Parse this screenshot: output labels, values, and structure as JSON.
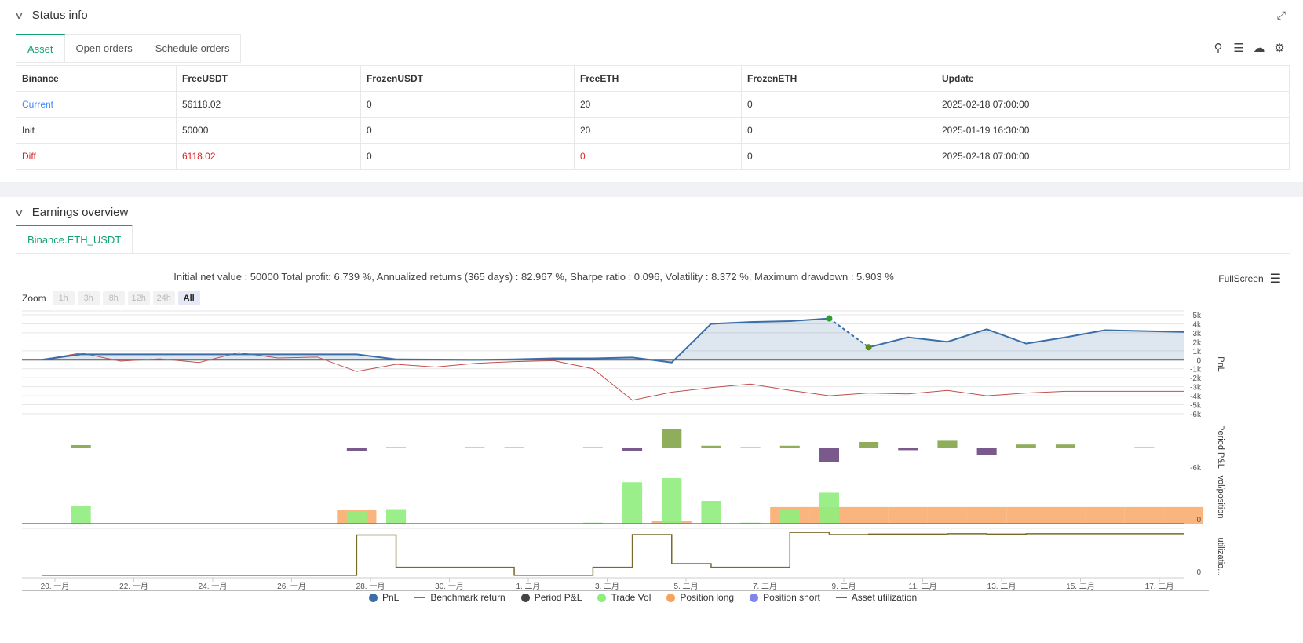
{
  "status": {
    "title": "Status info",
    "tabs": [
      "Asset",
      "Open orders",
      "Schedule orders"
    ],
    "table": {
      "headers": [
        "Binance",
        "FreeUSDT",
        "FrozenUSDT",
        "FreeETH",
        "FrozenETH",
        "Update"
      ],
      "rows": [
        [
          "Current",
          "56118.02",
          "0",
          "20",
          "0",
          "2025-02-18 07:00:00"
        ],
        [
          "Init",
          "50000",
          "0",
          "20",
          "0",
          "2025-01-19 16:30:00"
        ],
        [
          "Diff",
          "6118.02",
          "0",
          "0",
          "0",
          "2025-02-18 07:00:00"
        ]
      ]
    }
  },
  "earnings": {
    "title": "Earnings overview",
    "tab": "Binance.ETH_USDT",
    "summary": "Initial net value : 50000 Total profit: 6.739 %, Annualized returns (365 days) : 82.967 %, Sharpe ratio : 0.096, Volatility : 8.372 %, Maximum drawdown : 5.903 %",
    "fullscreen": "FullScreen",
    "zoom_label": "Zoom",
    "zoom_buttons": [
      "1h",
      "3h",
      "8h",
      "12h",
      "24h",
      "All"
    ],
    "legend": [
      "PnL",
      "Benchmark return",
      "Period P&L",
      "Trade Vol",
      "Position long",
      "Position short",
      "Asset utilization"
    ]
  },
  "colors": {
    "accent": "#13a36e",
    "pnl": "#3b6ea8",
    "benchmark": "#c0504d",
    "period_pos": "#8fad5a",
    "period_neg": "#7a5a8c",
    "vol": "#90ed7d",
    "long": "#f7a35c",
    "short": "#8085e9",
    "util": "#7a6a2a"
  },
  "chart_data": {
    "type": "line",
    "x_ticks": [
      "20. 一月",
      "22. 一月",
      "24. 一月",
      "26. 一月",
      "28. 一月",
      "30. 一月",
      "1. 二月",
      "3. 二月",
      "5. 二月",
      "7. 二月",
      "9. 二月",
      "11. 二月",
      "13. 二月",
      "15. 二月",
      "17. 二月"
    ],
    "pnl": {
      "ylabel": "PnL",
      "y_ticks": [
        "5k",
        "4k",
        "3k",
        "2k",
        "1k",
        "0",
        "-1k",
        "-2k",
        "-3k",
        "-4k",
        "-5k",
        "-6k"
      ],
      "ylim": [
        -6000,
        5000
      ],
      "x": [
        0,
        1,
        2,
        3,
        4,
        5,
        6,
        7,
        8,
        9,
        10,
        11,
        12,
        13,
        14,
        15,
        16,
        17,
        18,
        19,
        20,
        21,
        22,
        23,
        24,
        25,
        26,
        27,
        28,
        29
      ],
      "series": [
        {
          "name": "PnL",
          "values": [
            0,
            600,
            600,
            600,
            600,
            600,
            600,
            600,
            600,
            50,
            20,
            -20,
            50,
            150,
            150,
            250,
            -300,
            4000,
            4200,
            4300,
            4600,
            1400,
            2500,
            2000,
            3400,
            1800,
            2500,
            3300,
            3200,
            3100
          ]
        },
        {
          "name": "Benchmark return",
          "values": [
            0,
            750,
            -150,
            100,
            -300,
            800,
            200,
            300,
            -1300,
            -500,
            -800,
            -400,
            -200,
            -100,
            -1000,
            -4500,
            -3600,
            -3100,
            -2700,
            -3400,
            -4000,
            -3700,
            -3800,
            -3400,
            -4000,
            -3700,
            -3500,
            -3500,
            -3500,
            -3500
          ]
        }
      ]
    },
    "period_pnl": {
      "ylabel": "Period P&L",
      "y_ticks": [
        "-6k"
      ],
      "bars": [
        0,
        250,
        0,
        0,
        0,
        0,
        0,
        0,
        -200,
        80,
        0,
        80,
        80,
        0,
        80,
        -200,
        1500,
        200,
        80,
        200,
        -1100,
        500,
        -150,
        600,
        -500,
        300,
        300,
        0,
        80,
        0
      ]
    },
    "vol_position": {
      "ylabel": "vol/position",
      "y_ticks": [
        "0"
      ],
      "trade_vol": [
        0,
        1700,
        0,
        0,
        0,
        0,
        0,
        0,
        1200,
        1400,
        0,
        0,
        0,
        0,
        100,
        4000,
        4400,
        2200,
        100,
        1300,
        3000,
        0,
        0,
        0,
        0,
        0,
        0,
        0,
        0,
        0
      ],
      "position_long": [
        0,
        0,
        0,
        0,
        0,
        0,
        0,
        0,
        1300,
        0,
        0,
        0,
        0,
        0,
        0,
        0,
        300,
        0,
        0,
        1600,
        1600,
        1600,
        1600,
        1600,
        1600,
        1600,
        1600,
        1600,
        1600,
        1600
      ]
    },
    "asset_utilization": {
      "ylabel": "utilizatio...",
      "y_ticks": [
        "0"
      ],
      "values": [
        0.02,
        0.02,
        0.02,
        0.02,
        0.02,
        0.02,
        0.02,
        0.02,
        0.92,
        0.2,
        0.2,
        0.2,
        0.02,
        0.02,
        0.2,
        0.93,
        0.28,
        0.2,
        0.2,
        0.98,
        0.93,
        0.94,
        0.94,
        0.95,
        0.94,
        0.95,
        0.95,
        0.95,
        0.95,
        0.95
      ]
    }
  }
}
